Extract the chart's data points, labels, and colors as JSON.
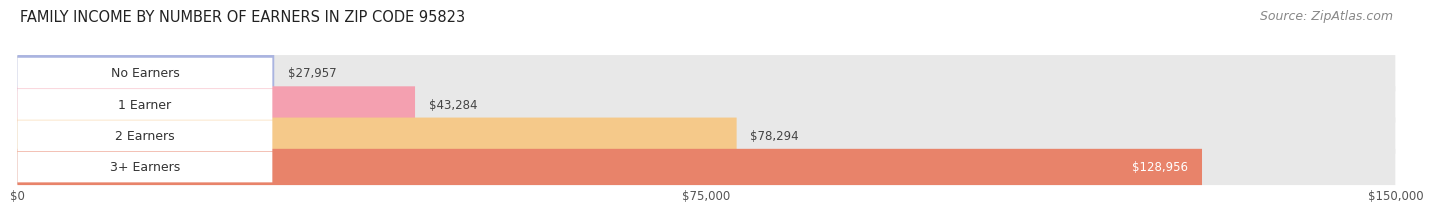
{
  "title": "FAMILY INCOME BY NUMBER OF EARNERS IN ZIP CODE 95823",
  "source": "Source: ZipAtlas.com",
  "categories": [
    "No Earners",
    "1 Earner",
    "2 Earners",
    "3+ Earners"
  ],
  "values": [
    27957,
    43284,
    78294,
    128956
  ],
  "bar_colors": [
    "#aab4e0",
    "#f4a0b0",
    "#f5c98a",
    "#e8836a"
  ],
  "bar_bg_color": "#e8e8e8",
  "label_colors": [
    "#333333",
    "#333333",
    "#333333",
    "#ffffff"
  ],
  "x_max": 150000,
  "x_ticks": [
    0,
    75000,
    150000
  ],
  "x_tick_labels": [
    "$0",
    "$75,000",
    "$150,000"
  ],
  "background_color": "#ffffff",
  "title_fontsize": 10.5,
  "source_fontsize": 9,
  "bar_label_fontsize": 8.5,
  "category_fontsize": 9
}
